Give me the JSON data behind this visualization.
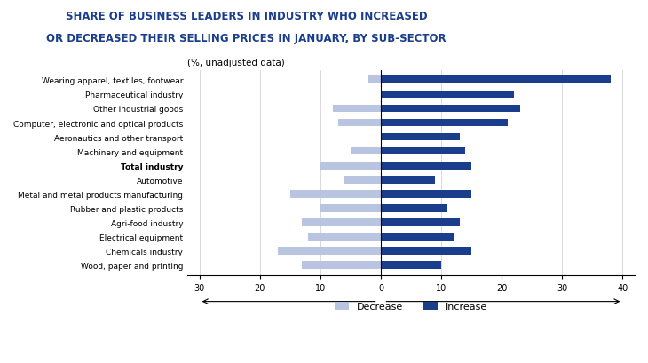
{
  "title_line1": "SHARE OF BUSINESS LEADERS IN INDUSTRY WHO INCREASED",
  "title_line2": "OR DECREASED THEIR SELLING PRICES IN JANUARY, BY SUB-SECTOR",
  "subtitle": "(%, unadjusted data)",
  "categories": [
    "Wearing apparel, textiles, footwear",
    "Pharmaceutical industry",
    "Other industrial goods",
    "Computer, electronic and optical products",
    "Aeronautics and other transport",
    "Machinery and equipment",
    "Total industry",
    "Automotive",
    "Metal and metal products manufacturing",
    "Rubber and plastic products",
    "Agri-food industry",
    "Electrical equipment",
    "Chemicals industry",
    "Wood, paper and printing"
  ],
  "decrease": [
    2,
    0,
    8,
    7,
    0,
    5,
    10,
    6,
    15,
    10,
    13,
    12,
    17,
    13
  ],
  "increase": [
    38,
    22,
    23,
    21,
    13,
    14,
    15,
    9,
    15,
    11,
    13,
    12,
    15,
    10
  ],
  "bold_index": 6,
  "color_increase": "#1a3e8c",
  "color_decrease": "#b8c4e0",
  "color_title": "#1a3e8c",
  "xlim_left": -32,
  "xlim_right": 42,
  "xticks": [
    -30,
    -20,
    -10,
    0,
    10,
    20,
    30,
    40
  ],
  "xtick_labels": [
    "30",
    "20",
    "10",
    "0",
    "10",
    "20",
    "30",
    "40"
  ],
  "arrow_left_label": "",
  "arrow_right_label": ""
}
